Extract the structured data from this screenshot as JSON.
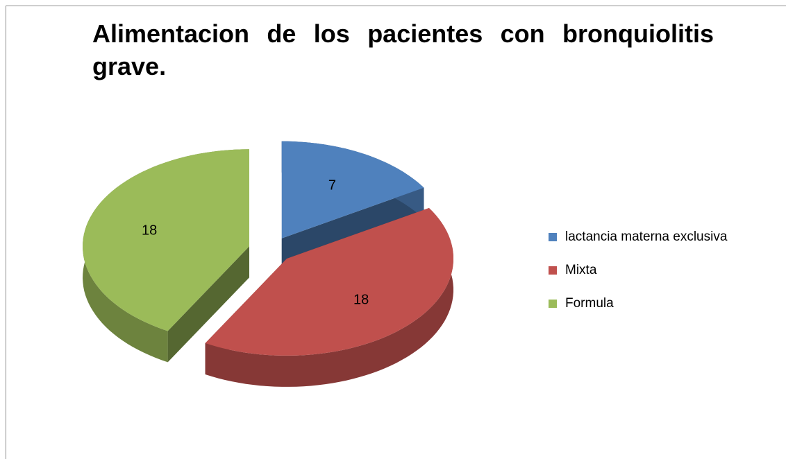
{
  "chart_data": {
    "type": "pie",
    "title": "Alimentacion de los pacientes con bronquiolitis grave.",
    "categories": [
      "lactancia materna exclusiva",
      "Mixta",
      "Formula"
    ],
    "values": [
      7,
      18,
      18
    ],
    "colors": [
      "#4f81bd",
      "#c0504d",
      "#9bbb59"
    ],
    "legend": "right"
  }
}
